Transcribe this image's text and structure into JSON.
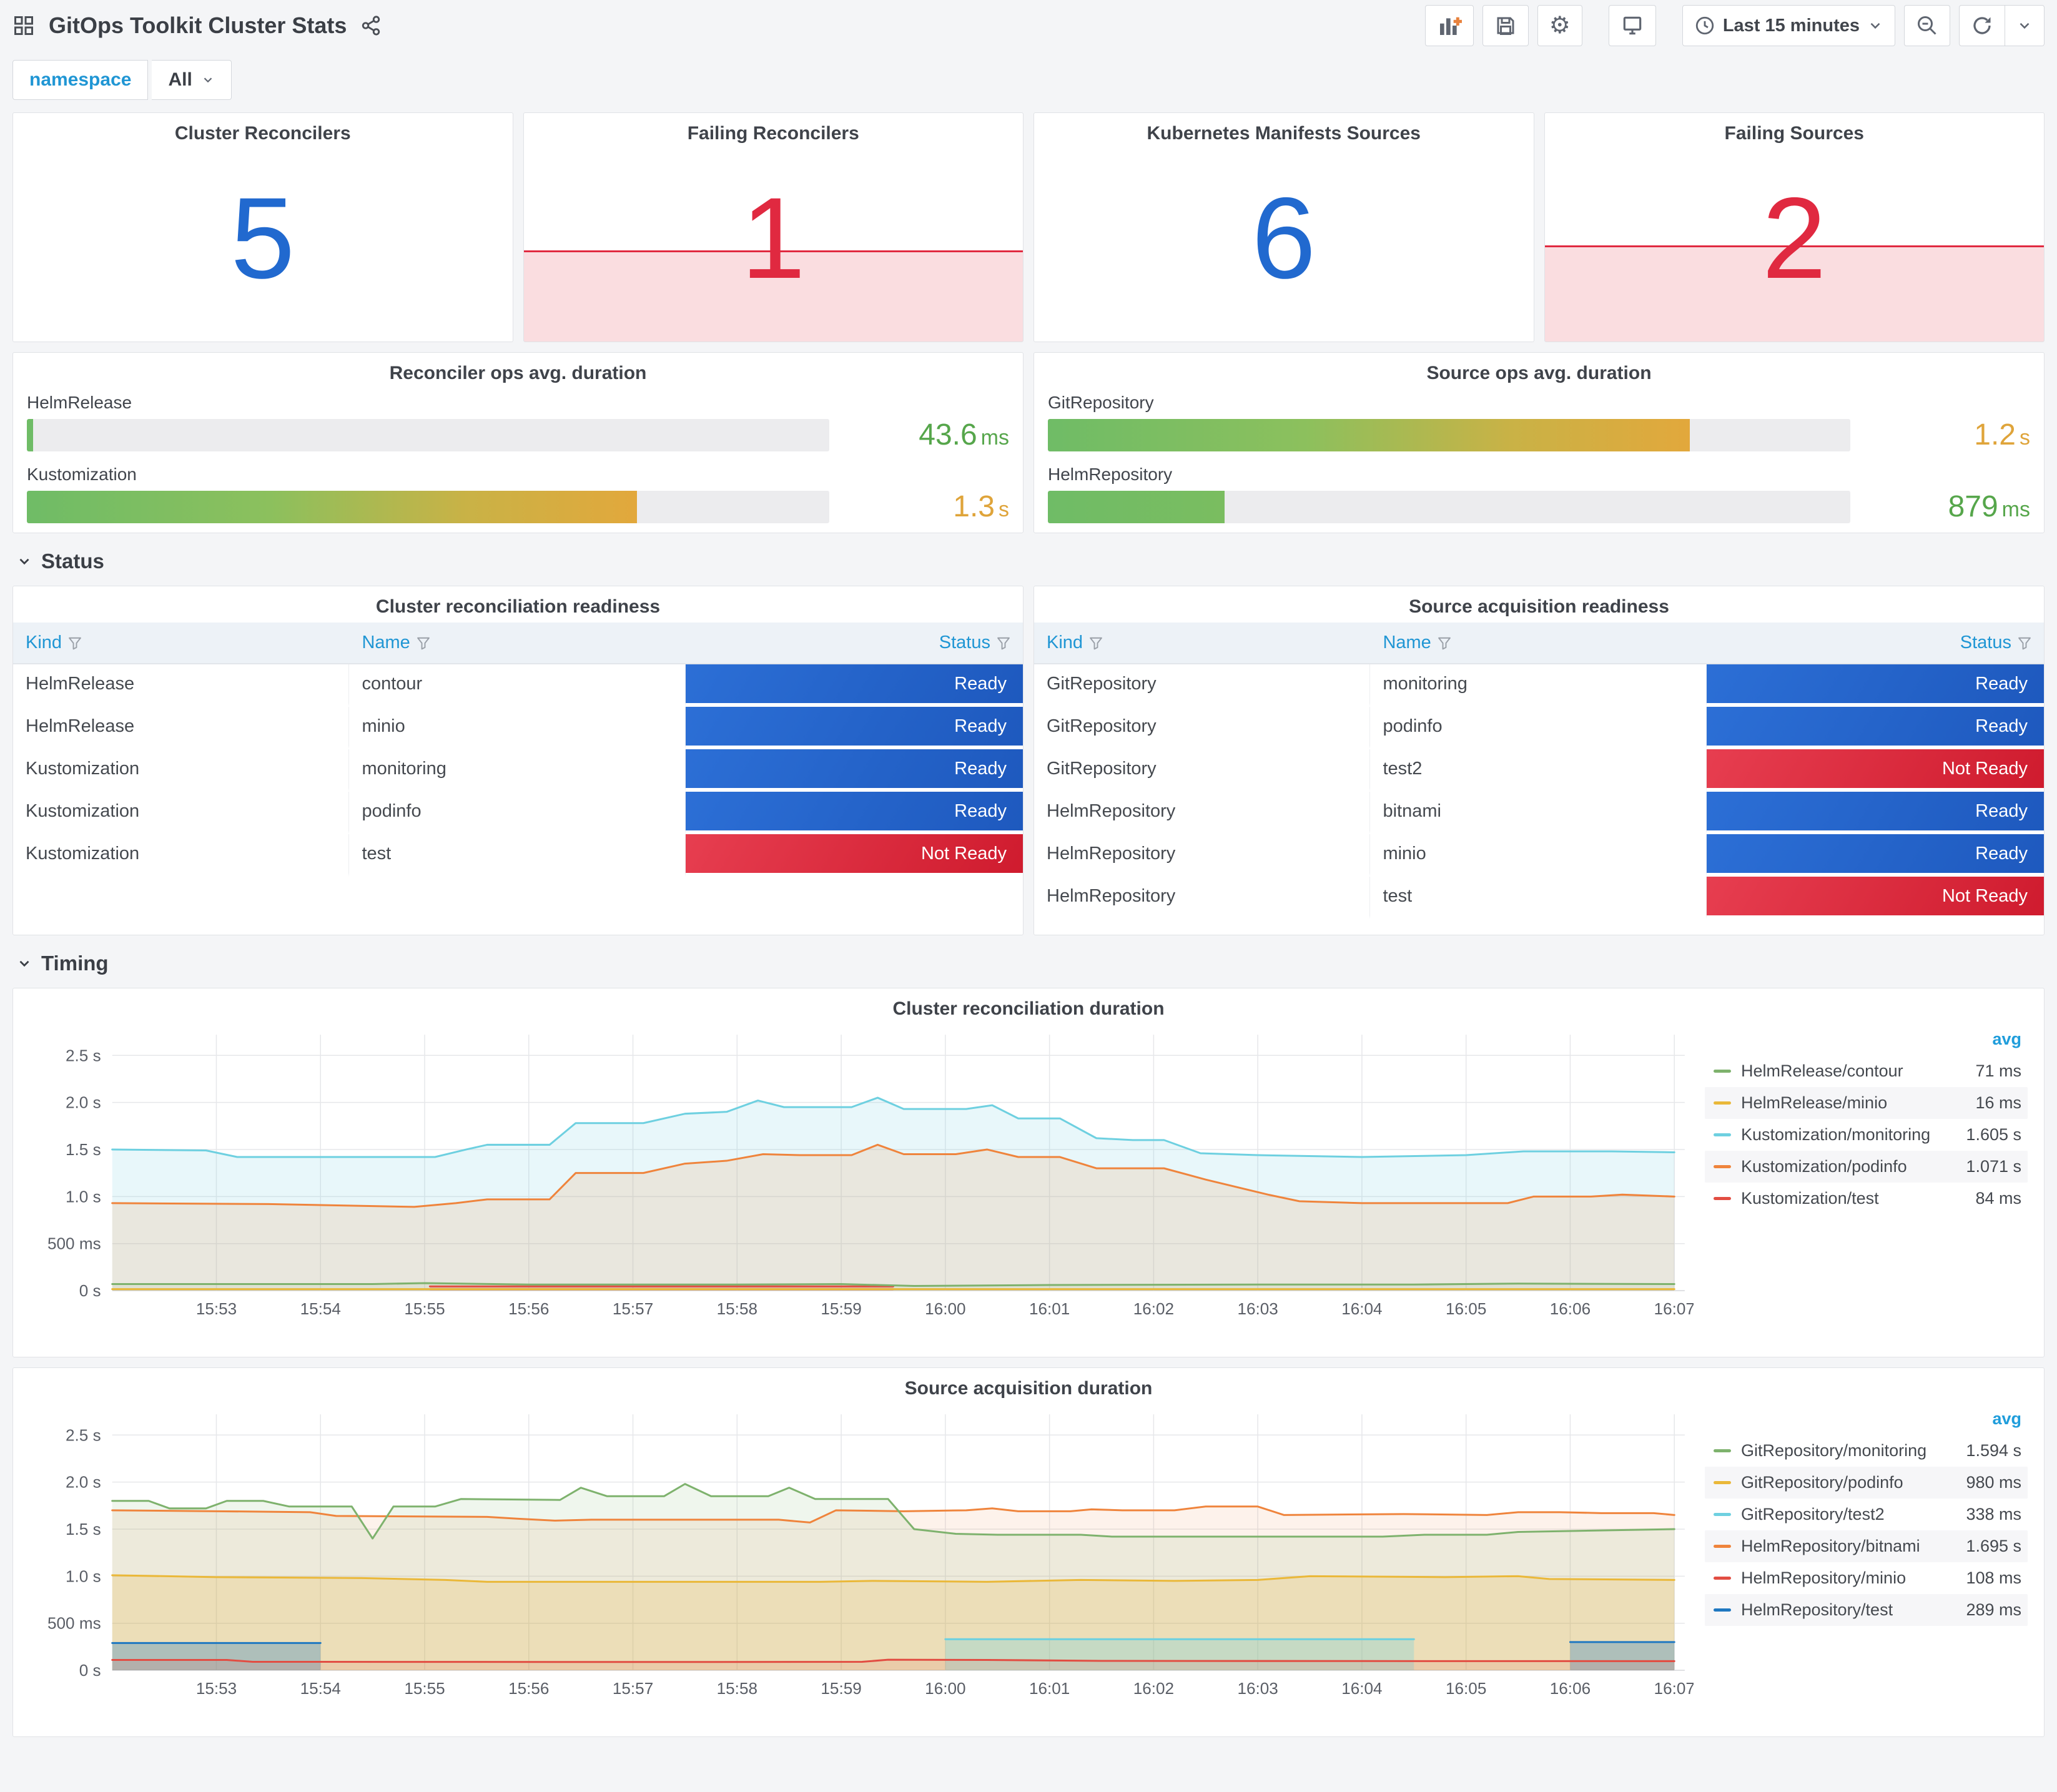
{
  "header": {
    "title": "GitOps Toolkit Cluster Stats",
    "time_range": "Last 15 minutes"
  },
  "variables": {
    "label": "namespace",
    "value": "All"
  },
  "sections": {
    "status": "Status",
    "timing": "Timing"
  },
  "stats": [
    {
      "title": "Cluster Reconcilers",
      "value": "5",
      "color": "blue",
      "sparkline": false,
      "fill_height": 0
    },
    {
      "title": "Failing Reconcilers",
      "value": "1",
      "color": "red",
      "sparkline": true,
      "fill_height": 40
    },
    {
      "title": "Kubernetes Manifests Sources",
      "value": "6",
      "color": "blue",
      "sparkline": false,
      "fill_height": 0
    },
    {
      "title": "Failing Sources",
      "value": "2",
      "color": "red",
      "sparkline": true,
      "fill_height": 42
    }
  ],
  "gauges": [
    {
      "title": "Reconciler ops avg. duration",
      "bars": [
        {
          "label": "HelmRelease",
          "value": "43.6",
          "unit": "ms",
          "percent": 0.8,
          "value_color": "green"
        },
        {
          "label": "Kustomization",
          "value": "1.3",
          "unit": "s",
          "percent": 76,
          "value_color": "orange"
        }
      ]
    },
    {
      "title": "Source ops avg. duration",
      "bars": [
        {
          "label": "GitRepository",
          "value": "1.2",
          "unit": "s",
          "percent": 80,
          "value_color": "orange"
        },
        {
          "label": "HelmRepository",
          "value": "879",
          "unit": "ms",
          "percent": 22,
          "value_color": "green"
        }
      ]
    }
  ],
  "tables": [
    {
      "title": "Cluster reconciliation readiness",
      "columns": [
        "Kind",
        "Name",
        "Status"
      ],
      "rows": [
        [
          "HelmRelease",
          "contour",
          "Ready"
        ],
        [
          "HelmRelease",
          "minio",
          "Ready"
        ],
        [
          "Kustomization",
          "monitoring",
          "Ready"
        ],
        [
          "Kustomization",
          "podinfo",
          "Ready"
        ],
        [
          "Kustomization",
          "test",
          "Not Ready"
        ]
      ]
    },
    {
      "title": "Source acquisition readiness",
      "columns": [
        "Kind",
        "Name",
        "Status"
      ],
      "rows": [
        [
          "GitRepository",
          "monitoring",
          "Ready"
        ],
        [
          "GitRepository",
          "podinfo",
          "Ready"
        ],
        [
          "GitRepository",
          "test2",
          "Not Ready"
        ],
        [
          "HelmRepository",
          "bitnami",
          "Ready"
        ],
        [
          "HelmRepository",
          "minio",
          "Ready"
        ],
        [
          "HelmRepository",
          "test",
          "Not Ready"
        ]
      ]
    }
  ],
  "chart_data": [
    {
      "type": "area",
      "title": "Cluster reconciliation duration",
      "ylim": [
        0,
        2.5
      ],
      "y_ticks": [
        0,
        0.5,
        1.0,
        1.5,
        2.0,
        2.5
      ],
      "y_tick_labels": [
        "0 s",
        "500 ms",
        "1.0 s",
        "1.5 s",
        "2.0 s",
        "2.5 s"
      ],
      "x_ticks": [
        "15:53",
        "15:54",
        "15:55",
        "15:56",
        "15:57",
        "15:58",
        "15:59",
        "16:00",
        "16:01",
        "16:02",
        "16:03",
        "16:04",
        "16:05",
        "16:06",
        "16:07"
      ],
      "legend_header": "avg",
      "legend_position": "right",
      "grid": true,
      "series": [
        {
          "name": "HelmRelease/contour",
          "avg": "71 ms",
          "color": "#7EB26D",
          "fill": 0.1,
          "z": 4,
          "points": [
            [
              0,
              0.07
            ],
            [
              2.5,
              0.07
            ],
            [
              3,
              0.08
            ],
            [
              4,
              0.065
            ],
            [
              6,
              0.065
            ],
            [
              7,
              0.07
            ],
            [
              7.7,
              0.05
            ],
            [
              9,
              0.06
            ],
            [
              11,
              0.065
            ],
            [
              12.5,
              0.065
            ],
            [
              13.5,
              0.075
            ],
            [
              15,
              0.07
            ]
          ]
        },
        {
          "name": "HelmRelease/minio",
          "avg": "16 ms",
          "color": "#EAB839",
          "fill": 0.1,
          "z": 5,
          "points": [
            [
              0,
              0.016
            ],
            [
              15,
              0.016
            ]
          ]
        },
        {
          "name": "Kustomization/monitoring",
          "avg": "1.605 s",
          "color": "#6ED0E0",
          "fill": 0.16,
          "z": 1,
          "points": [
            [
              0,
              1.5
            ],
            [
              0.9,
              1.49
            ],
            [
              1.2,
              1.42
            ],
            [
              3.1,
              1.42
            ],
            [
              3.4,
              1.5
            ],
            [
              3.6,
              1.55
            ],
            [
              4.2,
              1.55
            ],
            [
              4.45,
              1.78
            ],
            [
              5.1,
              1.78
            ],
            [
              5.5,
              1.88
            ],
            [
              5.9,
              1.9
            ],
            [
              6.2,
              2.02
            ],
            [
              6.45,
              1.95
            ],
            [
              7.1,
              1.95
            ],
            [
              7.35,
              2.05
            ],
            [
              7.6,
              1.93
            ],
            [
              8.2,
              1.93
            ],
            [
              8.45,
              1.97
            ],
            [
              8.7,
              1.83
            ],
            [
              9.1,
              1.83
            ],
            [
              9.45,
              1.62
            ],
            [
              9.8,
              1.6
            ],
            [
              10.1,
              1.6
            ],
            [
              10.45,
              1.46
            ],
            [
              11,
              1.44
            ],
            [
              12,
              1.42
            ],
            [
              13,
              1.44
            ],
            [
              13.55,
              1.48
            ],
            [
              14.4,
              1.48
            ],
            [
              15,
              1.47
            ]
          ]
        },
        {
          "name": "Kustomization/podinfo",
          "avg": "1.071 s",
          "color": "#EF843C",
          "fill": 0.14,
          "z": 2,
          "points": [
            [
              0,
              0.93
            ],
            [
              1.5,
              0.92
            ],
            [
              2.9,
              0.89
            ],
            [
              3.3,
              0.93
            ],
            [
              3.6,
              0.97
            ],
            [
              4.2,
              0.97
            ],
            [
              4.45,
              1.25
            ],
            [
              5.1,
              1.25
            ],
            [
              5.5,
              1.35
            ],
            [
              5.9,
              1.38
            ],
            [
              6.25,
              1.45
            ],
            [
              6.6,
              1.44
            ],
            [
              7.1,
              1.44
            ],
            [
              7.35,
              1.55
            ],
            [
              7.6,
              1.45
            ],
            [
              8.1,
              1.45
            ],
            [
              8.4,
              1.5
            ],
            [
              8.7,
              1.42
            ],
            [
              9.1,
              1.42
            ],
            [
              9.45,
              1.3
            ],
            [
              10.1,
              1.3
            ],
            [
              10.5,
              1.18
            ],
            [
              11.1,
              1.02
            ],
            [
              11.4,
              0.95
            ],
            [
              12,
              0.93
            ],
            [
              13.4,
              0.93
            ],
            [
              13.65,
              1.0
            ],
            [
              14.2,
              1.0
            ],
            [
              14.5,
              1.02
            ],
            [
              15,
              1.0
            ]
          ]
        },
        {
          "name": "Kustomization/test",
          "avg": "84 ms",
          "color": "#E24D42",
          "fill": 0.25,
          "z": 3,
          "segments": [
            [
              [
                3.05,
                0.045
              ],
              [
                7.5,
                0.045
              ]
            ]
          ]
        }
      ]
    },
    {
      "type": "area",
      "title": "Source acquisition duration",
      "ylim": [
        0,
        2.5
      ],
      "y_ticks": [
        0,
        0.5,
        1.0,
        1.5,
        2.0,
        2.5
      ],
      "y_tick_labels": [
        "0 s",
        "500 ms",
        "1.0 s",
        "1.5 s",
        "2.0 s",
        "2.5 s"
      ],
      "x_ticks": [
        "15:53",
        "15:54",
        "15:55",
        "15:56",
        "15:57",
        "15:58",
        "15:59",
        "16:00",
        "16:01",
        "16:02",
        "16:03",
        "16:04",
        "16:05",
        "16:06",
        "16:07"
      ],
      "legend_header": "avg",
      "legend_position": "right",
      "grid": true,
      "series": [
        {
          "name": "GitRepository/monitoring",
          "avg": "1.594 s",
          "color": "#7EB26D",
          "fill": 0.12,
          "z": 2,
          "points": [
            [
              0,
              1.8
            ],
            [
              0.35,
              1.8
            ],
            [
              0.55,
              1.72
            ],
            [
              0.9,
              1.72
            ],
            [
              1.1,
              1.8
            ],
            [
              1.45,
              1.8
            ],
            [
              1.7,
              1.74
            ],
            [
              2.3,
              1.74
            ],
            [
              2.5,
              1.4
            ],
            [
              2.7,
              1.74
            ],
            [
              3.1,
              1.74
            ],
            [
              3.35,
              1.82
            ],
            [
              4.3,
              1.81
            ],
            [
              4.5,
              1.94
            ],
            [
              4.75,
              1.85
            ],
            [
              5.3,
              1.85
            ],
            [
              5.5,
              1.98
            ],
            [
              5.75,
              1.85
            ],
            [
              6.3,
              1.85
            ],
            [
              6.5,
              1.94
            ],
            [
              6.75,
              1.82
            ],
            [
              7.45,
              1.82
            ],
            [
              7.7,
              1.5
            ],
            [
              8.1,
              1.45
            ],
            [
              8.5,
              1.44
            ],
            [
              9.3,
              1.44
            ],
            [
              9.6,
              1.42
            ],
            [
              12.2,
              1.42
            ],
            [
              12.6,
              1.44
            ],
            [
              13.2,
              1.44
            ],
            [
              13.5,
              1.47
            ],
            [
              14,
              1.48
            ],
            [
              15,
              1.5
            ]
          ]
        },
        {
          "name": "GitRepository/podinfo",
          "avg": "980 ms",
          "color": "#EAB839",
          "fill": 0.22,
          "z": 3,
          "points": [
            [
              0,
              1.01
            ],
            [
              1,
              0.99
            ],
            [
              2.4,
              0.98
            ],
            [
              3.2,
              0.96
            ],
            [
              3.6,
              0.94
            ],
            [
              6.8,
              0.94
            ],
            [
              7.3,
              0.95
            ],
            [
              8.4,
              0.94
            ],
            [
              9.3,
              0.96
            ],
            [
              10.2,
              0.95
            ],
            [
              11,
              0.96
            ],
            [
              11.5,
              1.0
            ],
            [
              12.8,
              0.99
            ],
            [
              13.5,
              1.0
            ],
            [
              13.8,
              0.97
            ],
            [
              15,
              0.96
            ]
          ]
        },
        {
          "name": "GitRepository/test2",
          "avg": "338 ms",
          "color": "#6ED0E0",
          "fill": 0.3,
          "z": 4,
          "segments": [
            [
              [
                8,
                0.33
              ],
              [
                12.5,
                0.33
              ]
            ]
          ]
        },
        {
          "name": "HelmRepository/bitnami",
          "avg": "1.695 s",
          "color": "#EF843C",
          "fill": 0.1,
          "z": 1,
          "points": [
            [
              0,
              1.7
            ],
            [
              1,
              1.69
            ],
            [
              1.9,
              1.68
            ],
            [
              2.15,
              1.64
            ],
            [
              3.6,
              1.63
            ],
            [
              3.9,
              1.61
            ],
            [
              4.25,
              1.59
            ],
            [
              4.6,
              1.6
            ],
            [
              6.4,
              1.6
            ],
            [
              6.7,
              1.57
            ],
            [
              6.95,
              1.7
            ],
            [
              7.6,
              1.69
            ],
            [
              8.2,
              1.7
            ],
            [
              8.45,
              1.72
            ],
            [
              8.7,
              1.69
            ],
            [
              9.2,
              1.69
            ],
            [
              9.4,
              1.71
            ],
            [
              9.7,
              1.7
            ],
            [
              10.2,
              1.7
            ],
            [
              10.5,
              1.74
            ],
            [
              11,
              1.74
            ],
            [
              11.25,
              1.65
            ],
            [
              12.4,
              1.66
            ],
            [
              13.2,
              1.65
            ],
            [
              13.5,
              1.68
            ],
            [
              13.9,
              1.68
            ],
            [
              14.3,
              1.67
            ],
            [
              14.8,
              1.67
            ],
            [
              15,
              1.65
            ]
          ]
        },
        {
          "name": "HelmRepository/minio",
          "avg": "108 ms",
          "color": "#E24D42",
          "fill": 0.12,
          "z": 6,
          "points": [
            [
              0,
              0.11
            ],
            [
              1.1,
              0.11
            ],
            [
              1.35,
              0.09
            ],
            [
              5.4,
              0.088
            ],
            [
              7.2,
              0.09
            ],
            [
              7.45,
              0.112
            ],
            [
              8.4,
              0.11
            ],
            [
              9.5,
              0.1
            ],
            [
              12,
              0.098
            ],
            [
              15,
              0.097
            ]
          ]
        },
        {
          "name": "HelmRepository/test",
          "avg": "289 ms",
          "color": "#1F78C1",
          "fill": 0.3,
          "z": 5,
          "segments": [
            [
              [
                0,
                0.29
              ],
              [
                2,
                0.29
              ]
            ],
            [
              [
                14,
                0.3
              ],
              [
                15,
                0.3
              ]
            ]
          ]
        }
      ]
    }
  ],
  "colors": {
    "stat_blue": "#2169cf",
    "stat_red": "#e02940",
    "ready_blue": "#2c6fd6",
    "notready_red": "#e02f44",
    "link_blue": "#2096d4",
    "value_green": "#56a64b",
    "value_orange": "#dfa43a"
  },
  "icons": {
    "apps": "apps-dashboard-icon",
    "share": "share-icon",
    "add_panel": "add-panel-icon",
    "save": "save-icon",
    "settings": "gear-icon",
    "tv": "cycle-view-icon",
    "clock": "clock-icon",
    "zoom_out": "zoom-out-icon",
    "refresh": "refresh-icon",
    "chevron": "chevron-down-icon",
    "filter": "filter-icon"
  }
}
